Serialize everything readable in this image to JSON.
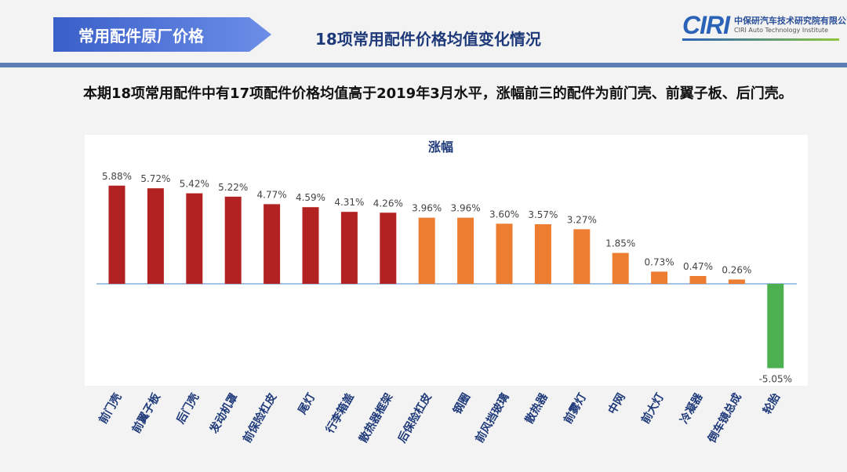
{
  "header": {
    "section_label": "常用配件原厂价格",
    "title": "18项常用配件价格均值变化情况",
    "logo_mark": "CIRI",
    "logo_cn": "中保研汽车技术研究院有限公司",
    "logo_en": "CIRI Auto Technology Institute"
  },
  "intro": "本期18项常用配件中有17项配件价格均值高于2019年3月水平，涨幅前三的配件为前门壳、前翼子板、后门壳。",
  "colors": {
    "dark_red": "#b22222",
    "orange": "#ed7d31",
    "green": "#4caf50",
    "label": "#1f3a7a"
  },
  "chart_data": {
    "type": "bar",
    "title": "涨幅",
    "ylabel": "",
    "xlabel": "",
    "ylim": [
      -5.5,
      6.5
    ],
    "grid": false,
    "categories": [
      "前门壳",
      "前翼子板",
      "后门壳",
      "发动机罩",
      "前保险杠皮",
      "尾灯",
      "行李箱盖",
      "散热器框架",
      "后保险杠皮",
      "钢圈",
      "前风挡玻璃",
      "散热器",
      "前雾灯",
      "中网",
      "前大灯",
      "冷凝器",
      "倒车镜总成",
      "轮胎"
    ],
    "values": [
      5.88,
      5.72,
      5.42,
      5.22,
      4.77,
      4.59,
      4.31,
      4.26,
      3.96,
      3.96,
      3.6,
      3.57,
      3.27,
      1.85,
      0.73,
      0.47,
      0.26,
      -5.05
    ],
    "labels": [
      "5.88%",
      "5.72%",
      "5.42%",
      "5.22%",
      "4.77%",
      "4.59%",
      "4.31%",
      "4.26%",
      "3.96%",
      "3.96%",
      "3.60%",
      "3.57%",
      "3.27%",
      "1.85%",
      "0.73%",
      "0.47%",
      "0.26%",
      "-5.05%"
    ],
    "color_groups": [
      "dark_red",
      "dark_red",
      "dark_red",
      "dark_red",
      "dark_red",
      "dark_red",
      "dark_red",
      "dark_red",
      "orange",
      "orange",
      "orange",
      "orange",
      "orange",
      "orange",
      "orange",
      "orange",
      "orange",
      "green"
    ]
  }
}
